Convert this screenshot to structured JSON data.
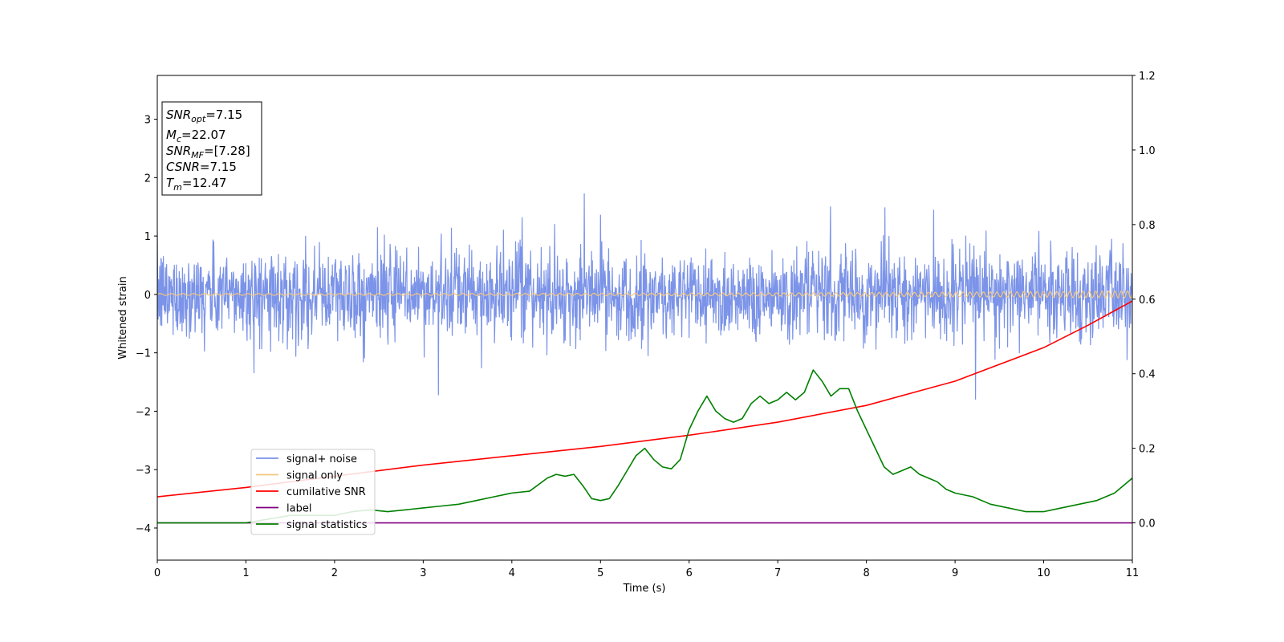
{
  "chart_data": {
    "type": "line",
    "xlabel": "Time (s)",
    "ylabel": "Whitened strain",
    "xlim": [
      0,
      11
    ],
    "ylim_left": [
      -4.55,
      3.75
    ],
    "ylim_right": [
      -0.1,
      1.2
    ],
    "x_ticks": [
      "0",
      "1",
      "2",
      "3",
      "4",
      "5",
      "6",
      "7",
      "8",
      "9",
      "10",
      "11"
    ],
    "y_ticks_left": [
      "−4",
      "−3",
      "−2",
      "−1",
      "0",
      "1",
      "2",
      "3"
    ],
    "y_ticks_right": [
      "0.0",
      "0.2",
      "0.4",
      "0.6",
      "0.8",
      "1.0",
      "1.2"
    ],
    "legend_position": "lower-left",
    "info_box": {
      "lines": [
        {
          "base": "SNR",
          "sub": "opt",
          "value": "=7.15"
        },
        {
          "base": "M",
          "sub": "c",
          "value": "=22.07"
        },
        {
          "base": "SNR",
          "sub": "MF",
          "value": "=[7.28]"
        },
        {
          "base": "CSNR",
          "sub": "",
          "value": "=7.15"
        },
        {
          "base": "T",
          "sub": "m",
          "value": "=12.47"
        }
      ]
    },
    "series": [
      {
        "name": "signal+ noise",
        "axis": "left",
        "color": "#7b93e8",
        "noise": true,
        "amplitude_std": 0.38,
        "x_range": [
          0,
          11
        ]
      },
      {
        "name": "signal only",
        "axis": "left",
        "color": "#f5c77e",
        "chirp": true,
        "amplitude_start": 0.015,
        "amplitude_end": 0.06,
        "cycles": 120
      },
      {
        "name": "cumilative SNR",
        "axis": "right",
        "color": "#ff0000",
        "x": [
          0,
          1,
          2,
          3,
          4,
          5,
          6,
          7,
          8,
          9,
          10,
          10.5,
          11
        ],
        "y": [
          0.07,
          0.095,
          0.125,
          0.155,
          0.18,
          0.205,
          0.235,
          0.27,
          0.315,
          0.38,
          0.47,
          0.53,
          0.595
        ]
      },
      {
        "name": "label",
        "axis": "right",
        "color": "#800080",
        "x": [
          0,
          11
        ],
        "y": [
          0.0,
          0.0
        ]
      },
      {
        "name": "signal statistics",
        "axis": "right",
        "color": "#008000",
        "x": [
          0,
          0.5,
          1,
          1.5,
          2,
          2.2,
          2.4,
          2.6,
          2.8,
          3,
          3.2,
          3.4,
          3.6,
          3.8,
          4,
          4.2,
          4.4,
          4.5,
          4.6,
          4.7,
          4.8,
          4.9,
          5,
          5.1,
          5.2,
          5.3,
          5.4,
          5.5,
          5.6,
          5.7,
          5.8,
          5.9,
          6,
          6.1,
          6.2,
          6.3,
          6.4,
          6.5,
          6.6,
          6.7,
          6.8,
          6.9,
          7,
          7.1,
          7.2,
          7.3,
          7.4,
          7.5,
          7.6,
          7.7,
          7.8,
          7.9,
          8,
          8.1,
          8.2,
          8.3,
          8.4,
          8.5,
          8.6,
          8.7,
          8.8,
          8.9,
          9,
          9.2,
          9.4,
          9.6,
          9.8,
          10,
          10.2,
          10.4,
          10.6,
          10.8,
          11
        ],
        "y": [
          0.0,
          0.0,
          0.0,
          0.02,
          0.02,
          0.03,
          0.035,
          0.03,
          0.035,
          0.04,
          0.045,
          0.05,
          0.06,
          0.07,
          0.08,
          0.085,
          0.12,
          0.13,
          0.125,
          0.13,
          0.1,
          0.065,
          0.06,
          0.065,
          0.1,
          0.14,
          0.18,
          0.2,
          0.17,
          0.15,
          0.145,
          0.17,
          0.25,
          0.3,
          0.34,
          0.3,
          0.28,
          0.27,
          0.28,
          0.32,
          0.34,
          0.32,
          0.33,
          0.35,
          0.33,
          0.35,
          0.41,
          0.38,
          0.34,
          0.36,
          0.36,
          0.3,
          0.25,
          0.2,
          0.15,
          0.13,
          0.14,
          0.15,
          0.13,
          0.12,
          0.11,
          0.09,
          0.08,
          0.07,
          0.05,
          0.04,
          0.03,
          0.03,
          0.04,
          0.05,
          0.06,
          0.08,
          0.12
        ]
      }
    ]
  }
}
